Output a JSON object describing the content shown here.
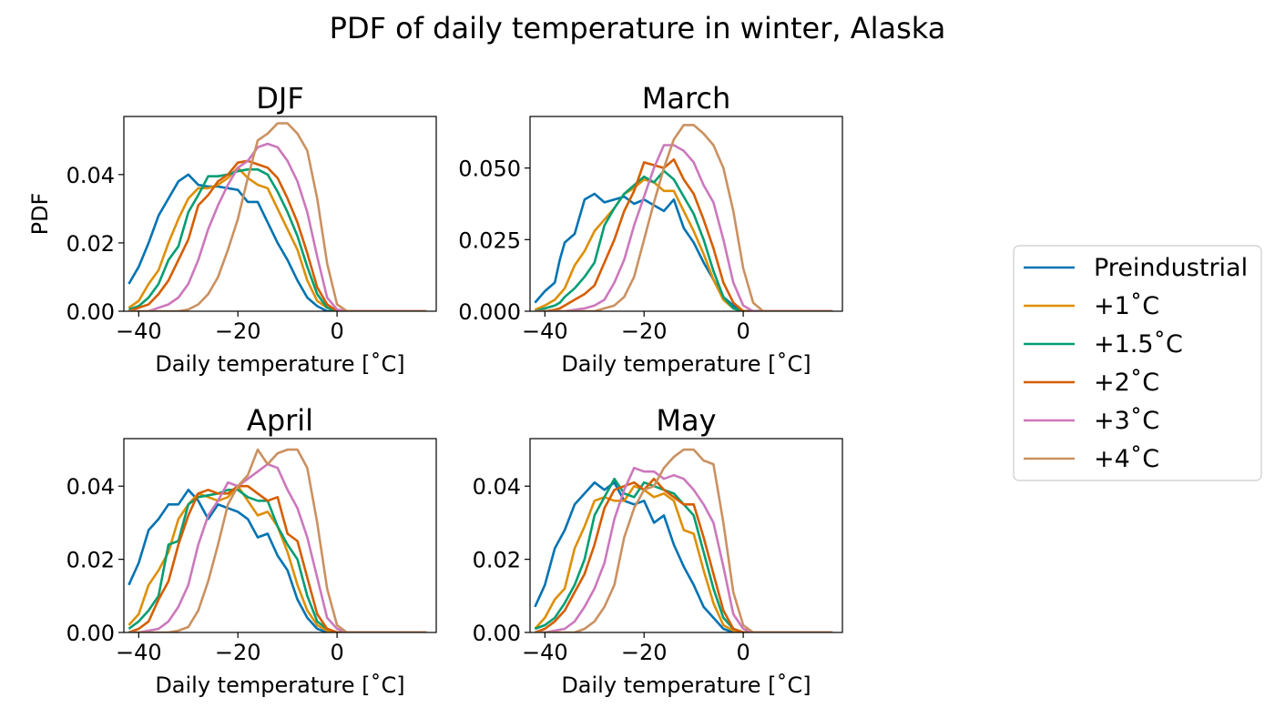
{
  "figure_title": "PDF of daily temperature in winter, Alaska",
  "legend": {
    "placement": "right",
    "entries": [
      {
        "label": "Preindustrial",
        "color": "#0173B2"
      },
      {
        "label": "+1˚C",
        "color": "#DE8F05"
      },
      {
        "label": "+1.5˚C",
        "color": "#029E73"
      },
      {
        "label": "+2˚C",
        "color": "#D55E00"
      },
      {
        "label": "+3˚C",
        "color": "#CC78BC"
      },
      {
        "label": "+4˚C",
        "color": "#CA9161"
      }
    ]
  },
  "chart_data": [
    {
      "type": "line",
      "title": "DJF",
      "xlabel": "Daily temperature [˚C]",
      "ylabel": "PDF",
      "xlim": [
        -43,
        20
      ],
      "ylim": [
        0,
        0.057
      ],
      "xticks": [
        -40,
        -20,
        0
      ],
      "xtick_labels": [
        "−40",
        "−20",
        "0"
      ],
      "yticks": [
        0,
        0.02,
        0.04
      ],
      "ytick_labels": [
        "0.00",
        "0.02",
        "0.04"
      ],
      "x": [
        -42,
        -40,
        -38,
        -36,
        -34,
        -32,
        -30,
        -28,
        -26,
        -24,
        -22,
        -20,
        -18,
        -16,
        -14,
        -12,
        -10,
        -8,
        -6,
        -4,
        -2,
        0,
        2,
        4,
        6,
        8,
        10,
        12,
        14,
        16,
        18
      ],
      "series": [
        {
          "name": "Preindustrial",
          "values": [
            0.008,
            0.013,
            0.02,
            0.028,
            0.033,
            0.038,
            0.04,
            0.037,
            0.0365,
            0.0365,
            0.036,
            0.0355,
            0.032,
            0.032,
            0.026,
            0.02,
            0.015,
            0.009,
            0.004,
            0.0015,
            0,
            0,
            0,
            0,
            0,
            0,
            0,
            0,
            0,
            0,
            0
          ]
        },
        {
          "name": "+1˚C",
          "values": [
            0.001,
            0.003,
            0.008,
            0.012,
            0.02,
            0.027,
            0.033,
            0.036,
            0.036,
            0.037,
            0.039,
            0.042,
            0.039,
            0.037,
            0.036,
            0.03,
            0.024,
            0.018,
            0.009,
            0.003,
            0.001,
            0,
            0,
            0,
            0,
            0,
            0,
            0,
            0,
            0,
            0
          ]
        },
        {
          "name": "+1.5˚C",
          "values": [
            0.0005,
            0.0015,
            0.004,
            0.008,
            0.015,
            0.019,
            0.029,
            0.034,
            0.0395,
            0.0395,
            0.04,
            0.041,
            0.0415,
            0.0415,
            0.04,
            0.035,
            0.029,
            0.022,
            0.013,
            0.005,
            0.001,
            0,
            0,
            0,
            0,
            0,
            0,
            0,
            0,
            0,
            0
          ]
        },
        {
          "name": "+2˚C",
          "values": [
            0,
            0.001,
            0.002,
            0.005,
            0.009,
            0.015,
            0.021,
            0.031,
            0.034,
            0.038,
            0.04,
            0.0435,
            0.044,
            0.043,
            0.042,
            0.039,
            0.033,
            0.026,
            0.017,
            0.007,
            0.002,
            0,
            0,
            0,
            0,
            0,
            0,
            0,
            0,
            0,
            0
          ]
        },
        {
          "name": "+3˚C",
          "values": [
            0,
            0,
            0,
            0.001,
            0.002,
            0.004,
            0.008,
            0.015,
            0.024,
            0.031,
            0.037,
            0.042,
            0.044,
            0.048,
            0.049,
            0.048,
            0.044,
            0.038,
            0.029,
            0.016,
            0.004,
            0.0005,
            0,
            0,
            0,
            0,
            0,
            0,
            0,
            0,
            0
          ]
        },
        {
          "name": "+4˚C",
          "values": [
            0,
            0,
            0,
            0,
            0,
            0,
            0.0005,
            0.002,
            0.005,
            0.01,
            0.018,
            0.027,
            0.039,
            0.05,
            0.052,
            0.055,
            0.055,
            0.052,
            0.047,
            0.033,
            0.014,
            0.002,
            0,
            0,
            0,
            0,
            0,
            0,
            0,
            0,
            0
          ]
        }
      ]
    },
    {
      "type": "line",
      "title": "March",
      "xlabel": "Daily temperature [˚C]",
      "ylabel": "",
      "xlim": [
        -43,
        20
      ],
      "ylim": [
        0,
        0.068
      ],
      "xticks": [
        -40,
        -20,
        0
      ],
      "xtick_labels": [
        "−40",
        "−20",
        "0"
      ],
      "yticks": [
        0,
        0.025,
        0.05
      ],
      "ytick_labels": [
        "0.000",
        "0.025",
        "0.050"
      ],
      "x": [
        -42,
        -40,
        -38,
        -37,
        -36,
        -34,
        -32,
        -30,
        -28,
        -26,
        -24,
        -22,
        -20,
        -18,
        -16,
        -14,
        -12,
        -10,
        -8,
        -6,
        -4,
        -2,
        0,
        2,
        4,
        6,
        8,
        10,
        12,
        14,
        16,
        18
      ],
      "series": [
        {
          "name": "Preindustrial",
          "values": [
            0.003,
            0.007,
            0.01,
            0.018,
            0.024,
            0.027,
            0.039,
            0.041,
            0.038,
            0.039,
            0.04,
            0.0375,
            0.039,
            0.037,
            0.035,
            0.039,
            0.029,
            0.024,
            0.017,
            0.011,
            0.005,
            0.002,
            0,
            0,
            0,
            0,
            0,
            0,
            0,
            0,
            0,
            0
          ]
        },
        {
          "name": "+1˚C",
          "values": [
            0.0005,
            0.002,
            0.004,
            0.006,
            0.008,
            0.016,
            0.021,
            0.028,
            0.032,
            0.036,
            0.041,
            0.043,
            0.046,
            0.045,
            0.042,
            0.042,
            0.035,
            0.028,
            0.02,
            0.011,
            0.004,
            0.001,
            0,
            0,
            0,
            0,
            0,
            0,
            0,
            0,
            0,
            0
          ]
        },
        {
          "name": "+1.5˚C",
          "values": [
            0,
            0.001,
            0.002,
            0.003,
            0.005,
            0.008,
            0.012,
            0.017,
            0.03,
            0.036,
            0.041,
            0.044,
            0.047,
            0.045,
            0.049,
            0.046,
            0.04,
            0.034,
            0.025,
            0.014,
            0.005,
            0.001,
            0,
            0,
            0,
            0,
            0,
            0,
            0,
            0,
            0,
            0
          ]
        },
        {
          "name": "+2˚C",
          "values": [
            0,
            0,
            0.0005,
            0.001,
            0.002,
            0.004,
            0.006,
            0.009,
            0.017,
            0.025,
            0.035,
            0.042,
            0.052,
            0.051,
            0.05,
            0.053,
            0.046,
            0.041,
            0.032,
            0.022,
            0.01,
            0.003,
            0,
            0,
            0,
            0,
            0,
            0,
            0,
            0,
            0,
            0
          ]
        },
        {
          "name": "+3˚C",
          "values": [
            0,
            0,
            0,
            0,
            0,
            0.0005,
            0.001,
            0.002,
            0.004,
            0.01,
            0.018,
            0.03,
            0.04,
            0.05,
            0.058,
            0.058,
            0.056,
            0.052,
            0.044,
            0.038,
            0.025,
            0.01,
            0.002,
            0,
            0,
            0,
            0,
            0,
            0,
            0,
            0,
            0
          ]
        },
        {
          "name": "+4˚C",
          "values": [
            0,
            0,
            0,
            0,
            0,
            0,
            0,
            0,
            0.001,
            0.002,
            0.005,
            0.012,
            0.025,
            0.038,
            0.05,
            0.06,
            0.065,
            0.065,
            0.062,
            0.058,
            0.05,
            0.035,
            0.015,
            0.003,
            0,
            0,
            0,
            0,
            0,
            0,
            0,
            0
          ]
        }
      ]
    },
    {
      "type": "line",
      "title": "April",
      "xlabel": "Daily temperature [˚C]",
      "ylabel": "",
      "xlim": [
        -43,
        20
      ],
      "ylim": [
        0,
        0.053
      ],
      "xticks": [
        -40,
        -20,
        0
      ],
      "xtick_labels": [
        "−40",
        "−20",
        "0"
      ],
      "yticks": [
        0,
        0.02,
        0.04
      ],
      "ytick_labels": [
        "0.00",
        "0.02",
        "0.04"
      ],
      "x": [
        -42,
        -40,
        -38,
        -36,
        -34,
        -32,
        -30,
        -28,
        -26,
        -24,
        -22,
        -20,
        -18,
        -16,
        -14,
        -12,
        -10,
        -8,
        -6,
        -4,
        -2,
        0,
        2,
        4,
        6,
        8,
        10,
        12,
        14,
        16,
        18
      ],
      "series": [
        {
          "name": "Preindustrial",
          "values": [
            0.013,
            0.019,
            0.028,
            0.031,
            0.035,
            0.035,
            0.039,
            0.036,
            0.031,
            0.035,
            0.034,
            0.033,
            0.031,
            0.026,
            0.027,
            0.021,
            0.017,
            0.009,
            0.004,
            0.001,
            0,
            0,
            0,
            0,
            0,
            0,
            0,
            0,
            0,
            0,
            0
          ]
        },
        {
          "name": "+1˚C",
          "values": [
            0.002,
            0.005,
            0.013,
            0.017,
            0.022,
            0.031,
            0.035,
            0.038,
            0.037,
            0.036,
            0.037,
            0.04,
            0.036,
            0.032,
            0.033,
            0.029,
            0.022,
            0.013,
            0.006,
            0.002,
            0.0005,
            0,
            0,
            0,
            0,
            0,
            0,
            0,
            0,
            0,
            0
          ]
        },
        {
          "name": "+1.5˚C",
          "values": [
            0.001,
            0.003,
            0.006,
            0.01,
            0.024,
            0.025,
            0.035,
            0.037,
            0.0375,
            0.038,
            0.039,
            0.039,
            0.037,
            0.036,
            0.036,
            0.029,
            0.024,
            0.02,
            0.01,
            0.003,
            0.001,
            0,
            0,
            0,
            0,
            0,
            0,
            0,
            0,
            0,
            0
          ]
        },
        {
          "name": "+2˚C",
          "values": [
            0,
            0.001,
            0.003,
            0.009,
            0.014,
            0.024,
            0.032,
            0.038,
            0.039,
            0.038,
            0.038,
            0.04,
            0.04,
            0.038,
            0.036,
            0.037,
            0.027,
            0.025,
            0.015,
            0.005,
            0.001,
            0,
            0,
            0,
            0,
            0,
            0,
            0,
            0,
            0,
            0
          ]
        },
        {
          "name": "+3˚C",
          "values": [
            0,
            0,
            0.0005,
            0.001,
            0.003,
            0.007,
            0.013,
            0.024,
            0.032,
            0.036,
            0.041,
            0.04,
            0.042,
            0.044,
            0.046,
            0.045,
            0.039,
            0.034,
            0.026,
            0.015,
            0.004,
            0.001,
            0,
            0,
            0,
            0,
            0,
            0,
            0,
            0,
            0
          ]
        },
        {
          "name": "+4˚C",
          "values": [
            0,
            0,
            0,
            0,
            0,
            0.0005,
            0.0015,
            0.006,
            0.014,
            0.024,
            0.035,
            0.04,
            0.043,
            0.05,
            0.046,
            0.049,
            0.05,
            0.05,
            0.045,
            0.03,
            0.012,
            0.002,
            0,
            0,
            0,
            0,
            0,
            0,
            0,
            0,
            0
          ]
        }
      ]
    },
    {
      "type": "line",
      "title": "May",
      "xlabel": "Daily temperature [˚C]",
      "ylabel": "",
      "xlim": [
        -43,
        20
      ],
      "ylim": [
        0,
        0.053
      ],
      "xticks": [
        -40,
        -20,
        0
      ],
      "xtick_labels": [
        "−40",
        "−20",
        "0"
      ],
      "yticks": [
        0,
        0.02,
        0.04
      ],
      "ytick_labels": [
        "0.00",
        "0.02",
        "0.04"
      ],
      "x": [
        -42,
        -40,
        -38,
        -36,
        -34,
        -32,
        -30,
        -28,
        -26,
        -24,
        -22,
        -20,
        -18,
        -16,
        -14,
        -12,
        -10,
        -8,
        -6,
        -4,
        -2,
        0,
        2,
        4,
        6,
        8,
        10,
        12,
        14,
        16,
        18
      ],
      "series": [
        {
          "name": "Preindustrial",
          "values": [
            0.007,
            0.013,
            0.023,
            0.028,
            0.035,
            0.038,
            0.041,
            0.039,
            0.041,
            0.036,
            0.035,
            0.036,
            0.03,
            0.032,
            0.024,
            0.018,
            0.013,
            0.007,
            0.004,
            0.001,
            0,
            0,
            0,
            0,
            0,
            0,
            0,
            0,
            0,
            0,
            0
          ]
        },
        {
          "name": "+1˚C",
          "values": [
            0.001,
            0.004,
            0.009,
            0.012,
            0.023,
            0.029,
            0.036,
            0.037,
            0.036,
            0.036,
            0.04,
            0.039,
            0.037,
            0.038,
            0.036,
            0.028,
            0.027,
            0.017,
            0.008,
            0.002,
            0.0005,
            0,
            0,
            0,
            0,
            0,
            0,
            0,
            0,
            0,
            0
          ]
        },
        {
          "name": "+1.5˚C",
          "values": [
            0.001,
            0.002,
            0.004,
            0.008,
            0.013,
            0.02,
            0.032,
            0.037,
            0.042,
            0.038,
            0.037,
            0.041,
            0.04,
            0.039,
            0.038,
            0.035,
            0.032,
            0.022,
            0.012,
            0.004,
            0.001,
            0,
            0,
            0,
            0,
            0,
            0,
            0,
            0,
            0,
            0
          ]
        },
        {
          "name": "+2˚C",
          "values": [
            0,
            0.001,
            0.003,
            0.006,
            0.011,
            0.016,
            0.024,
            0.034,
            0.039,
            0.04,
            0.041,
            0.039,
            0.042,
            0.039,
            0.037,
            0.035,
            0.035,
            0.026,
            0.016,
            0.006,
            0.001,
            0,
            0,
            0,
            0,
            0,
            0,
            0,
            0,
            0,
            0
          ]
        },
        {
          "name": "+3˚C",
          "values": [
            0,
            0,
            0.0005,
            0.001,
            0.003,
            0.007,
            0.012,
            0.019,
            0.031,
            0.039,
            0.045,
            0.044,
            0.044,
            0.042,
            0.043,
            0.042,
            0.039,
            0.035,
            0.03,
            0.018,
            0.005,
            0.001,
            0,
            0,
            0,
            0,
            0,
            0,
            0,
            0,
            0
          ]
        },
        {
          "name": "+4˚C",
          "values": [
            0,
            0,
            0,
            0,
            0,
            0.001,
            0.003,
            0.007,
            0.013,
            0.026,
            0.034,
            0.039,
            0.04,
            0.045,
            0.048,
            0.05,
            0.05,
            0.047,
            0.046,
            0.03,
            0.011,
            0.002,
            0,
            0,
            0,
            0,
            0,
            0,
            0,
            0,
            0
          ]
        }
      ]
    }
  ]
}
